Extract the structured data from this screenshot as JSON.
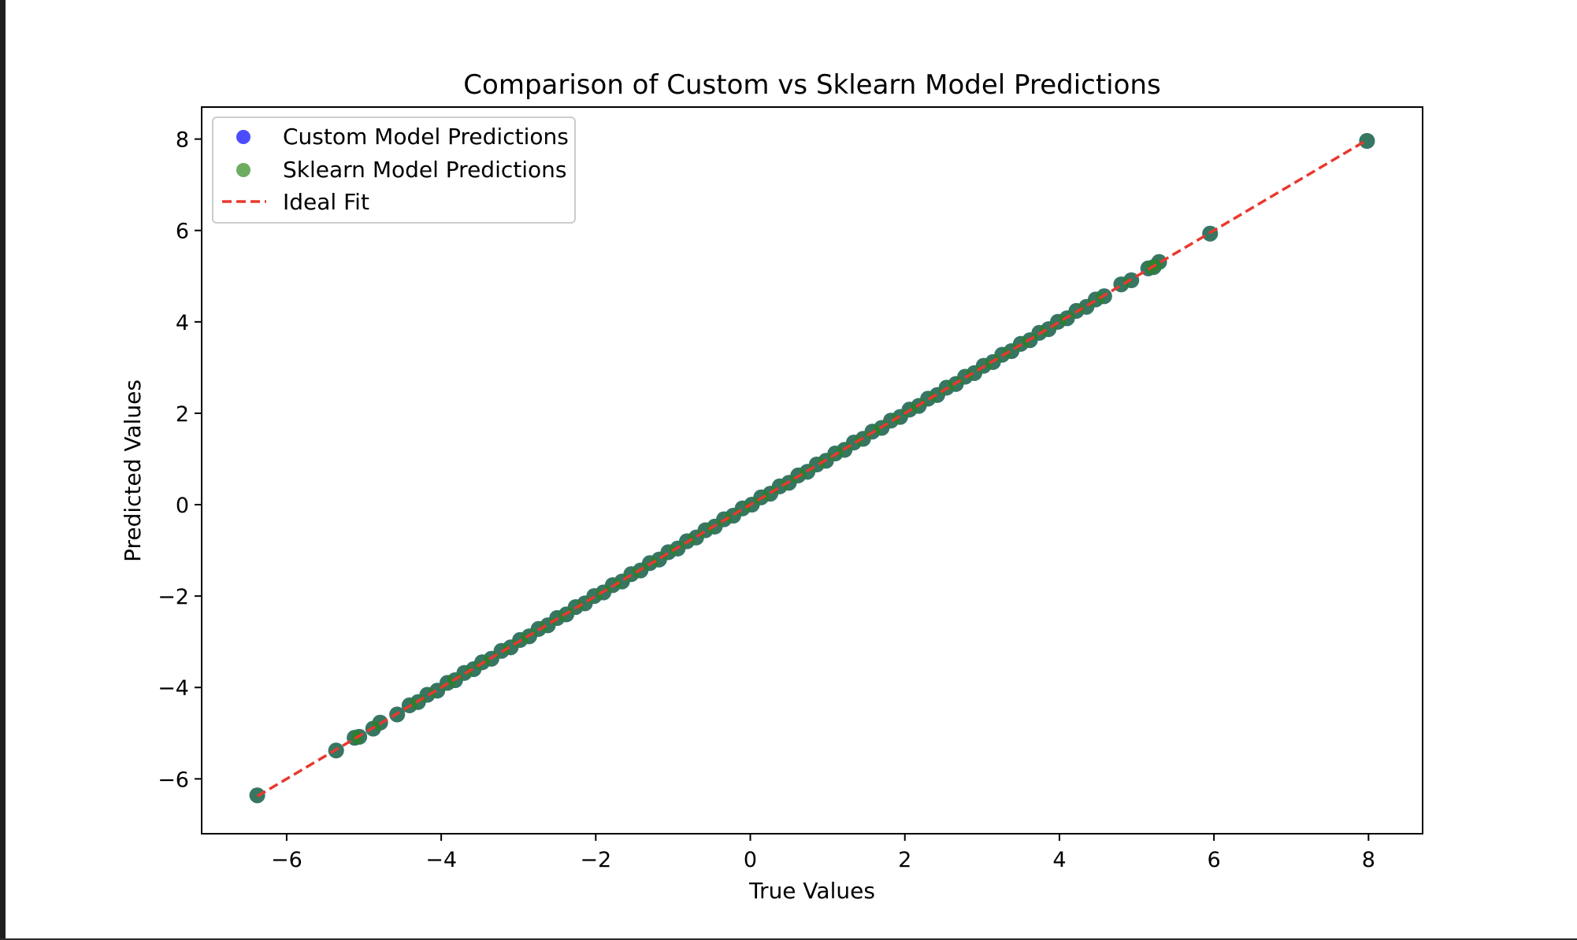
{
  "chart_data": {
    "type": "scatter",
    "title": "Comparison of Custom vs Sklearn Model Predictions",
    "xlabel": "True Values",
    "ylabel": "Predicted Values",
    "xlim": [
      -7.1,
      8.7
    ],
    "ylim": [
      -7.2,
      8.7
    ],
    "xticks": [
      -6,
      -4,
      -2,
      0,
      2,
      4,
      6,
      8
    ],
    "yticks": [
      -6,
      -4,
      -2,
      0,
      2,
      4,
      6,
      8
    ],
    "xtick_labels": [
      "−6",
      "−4",
      "−2",
      "0",
      "2",
      "4",
      "6",
      "8"
    ],
    "ytick_labels": [
      "−6",
      "−4",
      "−2",
      "0",
      "2",
      "4",
      "6",
      "8"
    ],
    "grid": false,
    "legend_position": "top-left",
    "series": [
      {
        "name": "Custom Model Predictions",
        "kind": "scatter",
        "color": "#0000ff",
        "alpha": 0.7,
        "x": [
          -6.38,
          -5.36,
          -5.12,
          -5.06,
          -4.88,
          -4.79,
          -4.57,
          -4.41,
          -4.3,
          -4.18,
          -4.05,
          -3.92,
          -3.82,
          -3.7,
          -3.58,
          -3.47,
          -3.35,
          -3.22,
          -3.1,
          -2.98,
          -2.86,
          -2.74,
          -2.62,
          -2.5,
          -2.38,
          -2.26,
          -2.14,
          -2.02,
          -1.9,
          -1.78,
          -1.66,
          -1.54,
          -1.42,
          -1.3,
          -1.18,
          -1.06,
          -0.94,
          -0.82,
          -0.7,
          -0.58,
          -0.46,
          -0.34,
          -0.22,
          -0.1,
          0.02,
          0.14,
          0.26,
          0.38,
          0.5,
          0.62,
          0.74,
          0.86,
          0.98,
          1.1,
          1.22,
          1.34,
          1.46,
          1.58,
          1.7,
          1.82,
          1.94,
          2.06,
          2.18,
          2.3,
          2.42,
          2.54,
          2.66,
          2.78,
          2.9,
          3.02,
          3.14,
          3.26,
          3.38,
          3.5,
          3.62,
          3.74,
          3.86,
          3.98,
          4.1,
          4.22,
          4.35,
          4.47,
          4.58,
          4.8,
          4.93,
          5.15,
          5.22,
          5.29,
          5.95,
          7.98
        ],
        "y": [
          -6.36,
          -5.38,
          -5.1,
          -5.08,
          -4.9,
          -4.77,
          -4.59,
          -4.39,
          -4.32,
          -4.16,
          -4.07,
          -3.9,
          -3.84,
          -3.68,
          -3.6,
          -3.45,
          -3.37,
          -3.2,
          -3.12,
          -2.96,
          -2.88,
          -2.72,
          -2.64,
          -2.48,
          -2.4,
          -2.24,
          -2.16,
          -2.0,
          -1.92,
          -1.76,
          -1.68,
          -1.52,
          -1.44,
          -1.28,
          -1.2,
          -1.04,
          -0.96,
          -0.8,
          -0.72,
          -0.56,
          -0.48,
          -0.32,
          -0.24,
          -0.08,
          0.0,
          0.16,
          0.24,
          0.4,
          0.48,
          0.64,
          0.72,
          0.88,
          0.96,
          1.12,
          1.2,
          1.36,
          1.44,
          1.6,
          1.68,
          1.84,
          1.92,
          2.08,
          2.16,
          2.32,
          2.4,
          2.56,
          2.64,
          2.8,
          2.88,
          3.04,
          3.12,
          3.28,
          3.36,
          3.52,
          3.6,
          3.76,
          3.84,
          4.0,
          4.08,
          4.24,
          4.33,
          4.49,
          4.56,
          4.82,
          4.91,
          5.17,
          5.2,
          5.31,
          5.93,
          7.96
        ]
      },
      {
        "name": "Sklearn Model Predictions",
        "kind": "scatter",
        "color": "#2f8a1e",
        "alpha": 0.7,
        "x": [
          -6.38,
          -5.36,
          -5.12,
          -5.06,
          -4.88,
          -4.79,
          -4.57,
          -4.41,
          -4.3,
          -4.18,
          -4.05,
          -3.92,
          -3.82,
          -3.7,
          -3.58,
          -3.47,
          -3.35,
          -3.22,
          -3.1,
          -2.98,
          -2.86,
          -2.74,
          -2.62,
          -2.5,
          -2.38,
          -2.26,
          -2.14,
          -2.02,
          -1.9,
          -1.78,
          -1.66,
          -1.54,
          -1.42,
          -1.3,
          -1.18,
          -1.06,
          -0.94,
          -0.82,
          -0.7,
          -0.58,
          -0.46,
          -0.34,
          -0.22,
          -0.1,
          0.02,
          0.14,
          0.26,
          0.38,
          0.5,
          0.62,
          0.74,
          0.86,
          0.98,
          1.1,
          1.22,
          1.34,
          1.46,
          1.58,
          1.7,
          1.82,
          1.94,
          2.06,
          2.18,
          2.3,
          2.42,
          2.54,
          2.66,
          2.78,
          2.9,
          3.02,
          3.14,
          3.26,
          3.38,
          3.5,
          3.62,
          3.74,
          3.86,
          3.98,
          4.1,
          4.22,
          4.35,
          4.47,
          4.58,
          4.8,
          4.93,
          5.15,
          5.22,
          5.29,
          5.95,
          7.98
        ],
        "y": [
          -6.36,
          -5.38,
          -5.1,
          -5.08,
          -4.9,
          -4.77,
          -4.59,
          -4.39,
          -4.32,
          -4.16,
          -4.07,
          -3.9,
          -3.84,
          -3.68,
          -3.6,
          -3.45,
          -3.37,
          -3.2,
          -3.12,
          -2.96,
          -2.88,
          -2.72,
          -2.64,
          -2.48,
          -2.4,
          -2.24,
          -2.16,
          -2.0,
          -1.92,
          -1.76,
          -1.68,
          -1.52,
          -1.44,
          -1.28,
          -1.2,
          -1.04,
          -0.96,
          -0.8,
          -0.72,
          -0.56,
          -0.48,
          -0.32,
          -0.24,
          -0.08,
          0.0,
          0.16,
          0.24,
          0.4,
          0.48,
          0.64,
          0.72,
          0.88,
          0.96,
          1.12,
          1.2,
          1.36,
          1.44,
          1.6,
          1.68,
          1.84,
          1.92,
          2.08,
          2.16,
          2.32,
          2.4,
          2.56,
          2.64,
          2.8,
          2.88,
          3.04,
          3.12,
          3.28,
          3.36,
          3.52,
          3.6,
          3.76,
          3.84,
          4.0,
          4.08,
          4.24,
          4.33,
          4.49,
          4.56,
          4.82,
          4.91,
          5.17,
          5.2,
          5.31,
          5.93,
          7.96
        ]
      },
      {
        "name": "Ideal Fit",
        "kind": "line",
        "style": "dashed",
        "color": "#e8392f",
        "x": [
          -6.38,
          7.98
        ],
        "y": [
          -6.38,
          7.98
        ]
      }
    ]
  }
}
